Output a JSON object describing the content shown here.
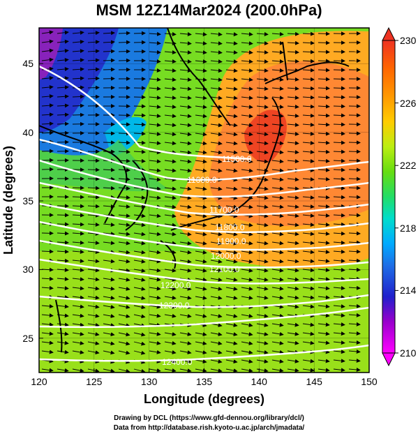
{
  "title": "MSM 12Z14Mar2024 (200.0hPa)",
  "x_axis": {
    "label": "Longitude (degrees)",
    "ticks": [
      "120",
      "125",
      "130",
      "135",
      "140",
      "145",
      "150"
    ],
    "range": [
      120,
      150
    ]
  },
  "y_axis": {
    "label": "Latitude  (degrees)",
    "ticks": [
      "25",
      "30",
      "35",
      "40",
      "45"
    ],
    "range": [
      22.5,
      47.6
    ]
  },
  "colorbar": {
    "ticks": [
      "230",
      "226",
      "222",
      "218",
      "214",
      "210"
    ],
    "range": [
      210,
      230
    ],
    "colors": [
      "#ff00ff",
      "#9900cc",
      "#2020cc",
      "#1e6ee6",
      "#00aaff",
      "#00ddcc",
      "#22dd66",
      "#66dd11",
      "#bbee11",
      "#ffcc00",
      "#ff9900",
      "#ff6600",
      "#ee3322"
    ]
  },
  "contours": {
    "labels": [
      "11500.0",
      "11600.0",
      "11700.0",
      "11800.0",
      "11900.0",
      "12000.0",
      "12100.0",
      "12200.0",
      "12300.0",
      "12400.0"
    ],
    "color": "#ffffff"
  },
  "wind": {
    "prevailing": "westerly",
    "color": "#000000"
  },
  "credits": {
    "line1": "Drawing by DCL (https://www.gfd-dennou.org/library/dcl/)",
    "line2": "Data from http://database.rish.kyoto-u.ac.jp/arch/jmadata/"
  }
}
